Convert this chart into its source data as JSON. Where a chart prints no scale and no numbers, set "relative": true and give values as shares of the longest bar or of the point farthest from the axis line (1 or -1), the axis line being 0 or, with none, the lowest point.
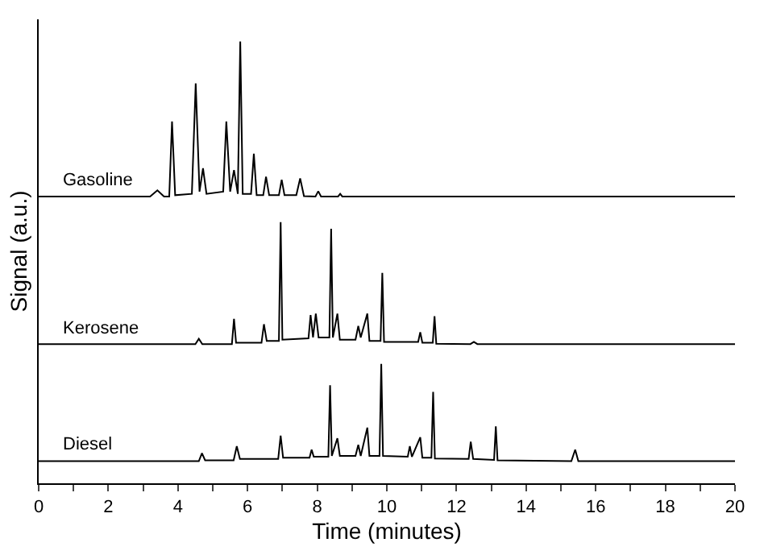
{
  "chart_data": {
    "type": "line",
    "relative": true,
    "xlabel": "Time (minutes)",
    "ylabel": "Signal (a.u.)",
    "xlim": [
      0,
      20
    ],
    "xticks": [
      0,
      {
        "value": 1,
        "label": null
      },
      2,
      {
        "value": 3,
        "label": null
      },
      4,
      {
        "value": 5,
        "label": null
      },
      6,
      {
        "value": 7,
        "label": null
      },
      8,
      {
        "value": 9,
        "label": null
      },
      10,
      {
        "value": 11,
        "label": null
      },
      12,
      {
        "value": 13,
        "label": null
      },
      14,
      {
        "value": 15,
        "label": null
      },
      16,
      {
        "value": 17,
        "label": null
      },
      18,
      {
        "value": 19,
        "label": null
      },
      20
    ],
    "legend": false,
    "marker": "none",
    "line_style": "solid",
    "series": [
      {
        "name": "Gasoline",
        "color": "#000000",
        "x": [
          0,
          3.2,
          3.41,
          3.6,
          3.75,
          3.83,
          3.92,
          4.4,
          4.51,
          4.62,
          4.72,
          4.82,
          5.3,
          5.39,
          5.5,
          5.61,
          5.72,
          5.79,
          5.86,
          6.1,
          6.18,
          6.26,
          6.45,
          6.53,
          6.62,
          6.9,
          6.98,
          7.06,
          7.4,
          7.51,
          7.62,
          7.95,
          8.03,
          8.11,
          8.6,
          8.66,
          8.72,
          20
        ],
        "values": [
          0.649,
          0.649,
          0.663,
          0.649,
          0.649,
          0.819,
          0.652,
          0.655,
          0.905,
          0.66,
          0.713,
          0.655,
          0.66,
          0.819,
          0.66,
          0.709,
          0.655,
          1.0,
          0.655,
          0.655,
          0.746,
          0.652,
          0.652,
          0.694,
          0.652,
          0.652,
          0.687,
          0.652,
          0.652,
          0.69,
          0.65,
          0.649,
          0.661,
          0.649,
          0.649,
          0.655,
          0.649,
          0.649
        ]
      },
      {
        "name": "Kerosene",
        "color": "#000000",
        "x": [
          0,
          4.5,
          4.6,
          4.7,
          5.55,
          5.61,
          5.67,
          6.4,
          6.47,
          6.55,
          6.9,
          6.95,
          7.0,
          7.75,
          7.81,
          7.88,
          7.96,
          8.04,
          8.35,
          8.4,
          8.45,
          8.58,
          8.65,
          9.1,
          9.18,
          9.25,
          9.44,
          9.5,
          9.82,
          9.87,
          9.92,
          10.9,
          10.96,
          11.02,
          11.32,
          11.37,
          11.42,
          12.4,
          12.5,
          12.6,
          20
        ],
        "values": [
          0.315,
          0.315,
          0.327,
          0.315,
          0.315,
          0.372,
          0.318,
          0.318,
          0.36,
          0.322,
          0.322,
          0.591,
          0.325,
          0.328,
          0.381,
          0.33,
          0.384,
          0.33,
          0.33,
          0.576,
          0.33,
          0.384,
          0.325,
          0.325,
          0.356,
          0.33,
          0.384,
          0.322,
          0.322,
          0.476,
          0.32,
          0.32,
          0.342,
          0.318,
          0.318,
          0.378,
          0.316,
          0.315,
          0.32,
          0.315,
          0.315
        ]
      },
      {
        "name": "Diesel",
        "color": "#000000",
        "x": [
          0,
          4.6,
          4.69,
          4.78,
          5.6,
          5.69,
          5.78,
          6.88,
          6.95,
          7.02,
          7.78,
          7.84,
          7.9,
          8.32,
          8.37,
          8.42,
          8.58,
          8.65,
          9.1,
          9.18,
          9.25,
          9.44,
          9.5,
          9.79,
          9.84,
          9.89,
          10.6,
          10.66,
          10.72,
          10.96,
          11.02,
          11.28,
          11.33,
          11.38,
          12.35,
          12.41,
          12.48,
          13.08,
          13.13,
          13.18,
          15.3,
          15.41,
          15.5,
          20
        ],
        "values": [
          0.05,
          0.05,
          0.068,
          0.052,
          0.052,
          0.084,
          0.055,
          0.055,
          0.108,
          0.058,
          0.058,
          0.076,
          0.06,
          0.06,
          0.222,
          0.062,
          0.102,
          0.062,
          0.062,
          0.087,
          0.062,
          0.126,
          0.062,
          0.062,
          0.27,
          0.062,
          0.06,
          0.084,
          0.06,
          0.104,
          0.058,
          0.058,
          0.207,
          0.056,
          0.055,
          0.094,
          0.055,
          0.053,
          0.129,
          0.052,
          0.05,
          0.076,
          0.05,
          0.05
        ]
      }
    ]
  }
}
